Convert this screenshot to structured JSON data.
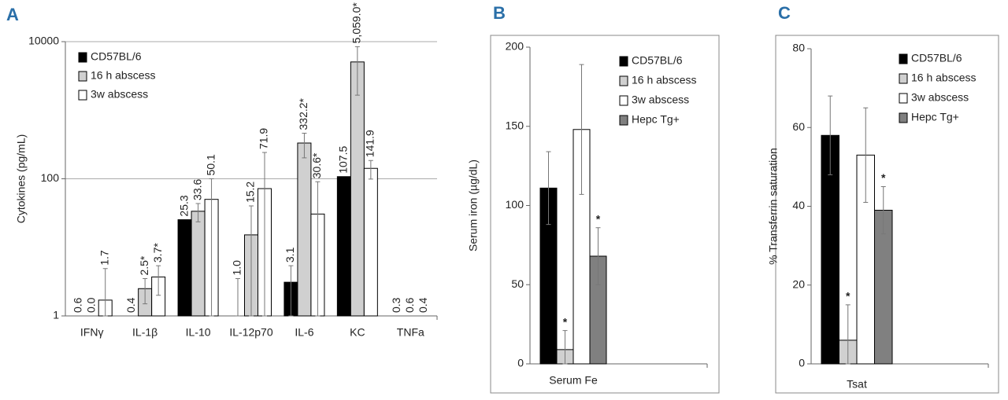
{
  "chart_data": [
    {
      "type": "bar",
      "panel_label": "A",
      "y_label": "Cytokines (pg/mL)",
      "log_scale": true,
      "grid": true,
      "categories": [
        "IFNγ",
        "IL-1β",
        "IL-10",
        "IL-12p70",
        "IL-6",
        "KC",
        "TNFa"
      ],
      "ylim": [
        1,
        10000
      ],
      "yticks": [
        1,
        100,
        10000
      ],
      "series": [
        {
          "name": "CD57BL/6",
          "color": "#000000",
          "values": [
            0.6,
            0.4,
            25.3,
            1.0,
            3.1,
            107.5,
            0.3
          ],
          "value_labels": [
            "0.6",
            "0.4",
            "25.3",
            "1.0",
            "3.1",
            "107.5",
            "0.3"
          ],
          "errors": [
            0,
            0,
            0,
            2.5,
            2.3,
            0,
            0
          ]
        },
        {
          "name": "16 h abscess",
          "color": "#d0d0d0",
          "values": [
            0.0,
            2.5,
            33.6,
            15.2,
            332.2,
            5059.0,
            0.6
          ],
          "value_labels": [
            "0.0",
            "2.5*",
            "33.6",
            "15.2",
            "332.2*",
            "5,059.0*",
            "0.6"
          ],
          "errors": [
            0,
            1.0,
            10,
            25,
            130,
            3400,
            0
          ]
        },
        {
          "name": "3w abscess",
          "color": "#ffffff",
          "values": [
            1.7,
            3.7,
            50.1,
            71.9,
            30.6,
            141.9,
            0.4
          ],
          "value_labels": [
            "1.7",
            "3.7*",
            "50.1",
            "71.9",
            "30.6*",
            "141.9",
            "0.4"
          ],
          "errors": [
            3.2,
            1.7,
            50,
            170,
            60,
            43,
            0
          ]
        }
      ]
    },
    {
      "type": "bar",
      "panel_label": "B",
      "y_label": "Serum iron (µg/dL)",
      "log_scale": false,
      "grid": false,
      "categories": [
        "Serum Fe"
      ],
      "ylim": [
        0,
        200
      ],
      "yticks": [
        0,
        50,
        100,
        150,
        200
      ],
      "series": [
        {
          "name": "CD57BL/6",
          "color": "#000000",
          "values": [
            111
          ],
          "errors": [
            23
          ],
          "sig_labels": [
            null
          ]
        },
        {
          "name": "16 h abscess",
          "color": "#d0d0d0",
          "values": [
            9
          ],
          "errors": [
            12
          ],
          "sig_labels": [
            "*"
          ]
        },
        {
          "name": "3w abscess",
          "color": "#ffffff",
          "values": [
            148
          ],
          "errors": [
            41
          ],
          "sig_labels": [
            null
          ]
        },
        {
          "name": "Hepc Tg+",
          "color": "#808080",
          "values": [
            68
          ],
          "errors": [
            18
          ],
          "sig_labels": [
            "*"
          ]
        }
      ]
    },
    {
      "type": "bar",
      "panel_label": "C",
      "y_label": "% Transferrin saturation",
      "log_scale": false,
      "grid": false,
      "categories": [
        "Tsat"
      ],
      "ylim": [
        0,
        80
      ],
      "yticks": [
        0,
        20,
        40,
        60,
        80
      ],
      "series": [
        {
          "name": "CD57BL/6",
          "color": "#000000",
          "values": [
            58
          ],
          "errors": [
            10
          ],
          "sig_labels": [
            null
          ]
        },
        {
          "name": "16 h abscess",
          "color": "#d0d0d0",
          "values": [
            6
          ],
          "errors": [
            9
          ],
          "sig_labels": [
            "*"
          ]
        },
        {
          "name": "3w abscess",
          "color": "#ffffff",
          "values": [
            53
          ],
          "errors": [
            12
          ],
          "sig_labels": [
            null
          ]
        },
        {
          "name": "Hepc Tg+",
          "color": "#808080",
          "values": [
            39
          ],
          "errors": [
            6
          ],
          "sig_labels": [
            "*"
          ]
        }
      ]
    }
  ]
}
